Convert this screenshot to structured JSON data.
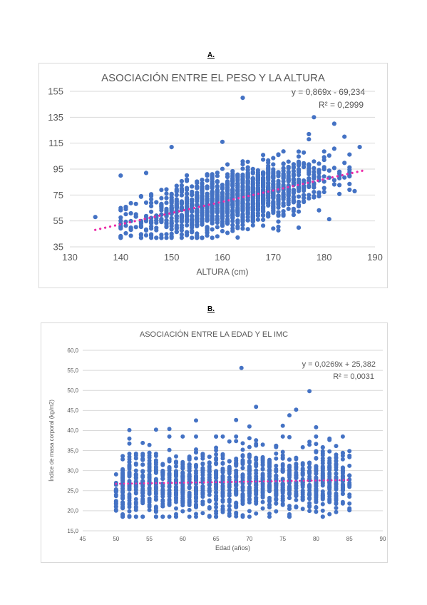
{
  "panels": [
    {
      "label": "A."
    },
    {
      "label": "B."
    }
  ],
  "colors": {
    "points": "#4472c4",
    "trendline": "#ec2aa8",
    "grid": "#d9d9d9",
    "text": "#595959"
  },
  "chart_data": [
    {
      "type": "scatter",
      "title": "ASOCIACIÓN ENTRE EL PESO Y LA ALTURA",
      "xlabel": "ALTURA (cm)",
      "ylabel": "",
      "xlim": [
        130,
        190
      ],
      "ylim": [
        35,
        155
      ],
      "xticks": [
        130,
        140,
        150,
        160,
        170,
        180,
        190
      ],
      "yticks": [
        35,
        55,
        75,
        95,
        115,
        135,
        155
      ],
      "grid": "horizontal",
      "x_data_range": [
        135,
        188
      ],
      "trendline": {
        "type": "linear",
        "slope": 0.869,
        "intercept": -69.234,
        "equation": "y = 0,869x - 69,234",
        "r2": "R² = 0,2999"
      },
      "notable_points": [
        [
          135,
          58
        ],
        [
          140,
          90
        ],
        [
          145,
          92
        ],
        [
          150,
          112
        ],
        [
          160,
          116
        ],
        [
          164,
          150
        ],
        [
          178,
          135
        ],
        [
          182,
          130
        ],
        [
          177,
          122
        ],
        [
          184,
          120
        ],
        [
          187,
          112
        ],
        [
          150,
          43
        ],
        [
          153,
          44
        ],
        [
          186,
          78
        ]
      ]
    },
    {
      "type": "scatter",
      "title": "ASOCIACIÓN ENTRE LA EDAD Y EL IMC",
      "xlabel": "Edad (años)",
      "ylabel": "Índice de masa corporal (kg/m2)",
      "xlim": [
        45,
        90
      ],
      "ylim": [
        15,
        60
      ],
      "xticks": [
        45,
        50,
        55,
        60,
        65,
        70,
        75,
        80,
        85,
        90
      ],
      "yticks": [
        "15,0",
        "20,0",
        "25,0",
        "30,0",
        "35,0",
        "40,0",
        "45,0",
        "50,0",
        "55,0",
        "60,0"
      ],
      "grid": "horizontal",
      "x_data_range": [
        50,
        85
      ],
      "trendline": {
        "type": "linear",
        "slope": 0.0269,
        "intercept": 25.382,
        "equation": "y = 0,0269x + 25,382",
        "r2": "R² = 0,0031"
      },
      "notable_points": [
        [
          68.8,
          55.6
        ],
        [
          71,
          45.9
        ],
        [
          79,
          49.8
        ],
        [
          77,
          45.2
        ],
        [
          80,
          40.8
        ],
        [
          68,
          42.6
        ],
        [
          62,
          42.5
        ],
        [
          76,
          43.8
        ],
        [
          75,
          41.2
        ],
        [
          70,
          41.0
        ],
        [
          52,
          40.1
        ],
        [
          56,
          40.2
        ],
        [
          58,
          40.4
        ]
      ]
    }
  ]
}
